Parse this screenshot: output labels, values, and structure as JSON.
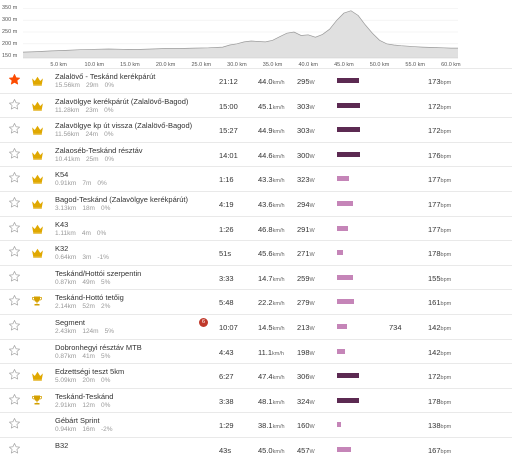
{
  "chart_data": {
    "type": "area",
    "title": "",
    "xlabel": "",
    "ylabel": "",
    "y_ticks": [
      "350 m",
      "300 m",
      "250 m",
      "200 m",
      "150 m"
    ],
    "x_ticks": [
      "5.0 km",
      "10.0 km",
      "15.0 km",
      "20.0 km",
      "25.0 km",
      "30.0 km",
      "35.0 km",
      "40.0 km",
      "45.0 km",
      "50.0 km",
      "55.0 km",
      "60.0 km"
    ],
    "xlim": [
      0,
      61
    ],
    "ylim": [
      140,
      360
    ],
    "x": [
      0,
      2,
      4,
      6,
      8,
      10,
      12,
      14,
      16,
      18,
      20,
      22,
      24,
      26,
      28,
      29,
      30,
      31,
      32,
      33,
      34,
      35,
      36,
      37,
      38,
      39,
      40,
      41,
      42,
      43,
      44,
      45,
      46,
      47,
      48,
      49,
      50,
      51,
      52,
      53,
      54,
      55,
      56,
      57,
      58,
      59,
      60,
      61
    ],
    "values": [
      165,
      167,
      170,
      172,
      175,
      177,
      178,
      177,
      176,
      178,
      180,
      180,
      182,
      183,
      186,
      195,
      200,
      208,
      212,
      210,
      208,
      215,
      230,
      245,
      250,
      235,
      238,
      228,
      240,
      262,
      300,
      330,
      340,
      320,
      280,
      245,
      215,
      200,
      195,
      192,
      190,
      188,
      186,
      185,
      184,
      183,
      182,
      182
    ],
    "fill_color": "#e0e0e0",
    "line_color": "#9a9a9a"
  },
  "segments": [
    {
      "starred": true,
      "medal": "crown",
      "name": "Zalalövő - Teskánd kerékpárút",
      "dist": "15.56km",
      "elev": "29m",
      "grade": "0%",
      "badge": "",
      "time": "21:12",
      "speed": "44.0",
      "power": "295",
      "power_frac": 0.84,
      "extra": "",
      "hr": "173"
    },
    {
      "starred": false,
      "medal": "crown",
      "name": "Zalavölgye kerékpárút (Zalalövő-Bagod)",
      "dist": "11.28km",
      "elev": "23m",
      "grade": "0%",
      "badge": "",
      "time": "15:00",
      "speed": "45.1",
      "power": "303",
      "power_frac": 0.9,
      "extra": "",
      "hr": "172"
    },
    {
      "starred": false,
      "medal": "crown",
      "name": "Zalavölgye kp út vissza (Zalalövő-Bagod)",
      "dist": "11.56km",
      "elev": "24m",
      "grade": "0%",
      "badge": "",
      "time": "15:27",
      "speed": "44.9",
      "power": "303",
      "power_frac": 0.9,
      "extra": "",
      "hr": "172"
    },
    {
      "starred": false,
      "medal": "crown",
      "name": "Zalaoséb-Teskánd résztáv",
      "dist": "10.41km",
      "elev": "25m",
      "grade": "0%",
      "badge": "",
      "time": "14:01",
      "speed": "44.6",
      "power": "300",
      "power_frac": 0.88,
      "extra": "",
      "hr": "176"
    },
    {
      "starred": false,
      "medal": "crown",
      "name": "K54",
      "dist": "0.91km",
      "elev": "7m",
      "grade": "0%",
      "badge": "",
      "time": "1:16",
      "speed": "43.3",
      "power": "323",
      "power_frac": 0.46,
      "extra": "",
      "hr": "177"
    },
    {
      "starred": false,
      "medal": "crown",
      "name": "Bagod-Teskánd (Zalavölgye kerékpárút)",
      "dist": "3.13km",
      "elev": "18m",
      "grade": "0%",
      "badge": "",
      "time": "4:19",
      "speed": "43.6",
      "power": "294",
      "power_frac": 0.6,
      "extra": "",
      "hr": "177"
    },
    {
      "starred": false,
      "medal": "crown",
      "name": "K43",
      "dist": "1.11km",
      "elev": "4m",
      "grade": "0%",
      "badge": "",
      "time": "1:26",
      "speed": "46.8",
      "power": "291",
      "power_frac": 0.42,
      "extra": "",
      "hr": "177"
    },
    {
      "starred": false,
      "medal": "crown",
      "name": "K32",
      "dist": "0.64km",
      "elev": "3m",
      "grade": "-1%",
      "badge": "",
      "time": "51s",
      "speed": "45.6",
      "power": "271",
      "power_frac": 0.22,
      "extra": "",
      "hr": "178"
    },
    {
      "starred": false,
      "medal": "none",
      "name": "Teskánd/Hottói szerpentin",
      "dist": "0.87km",
      "elev": "49m",
      "grade": "5%",
      "badge": "",
      "time": "3:33",
      "speed": "14.7",
      "power": "259",
      "power_frac": 0.62,
      "extra": "",
      "hr": "155"
    },
    {
      "starred": false,
      "medal": "trophy",
      "name": "Teskánd-Hottó tetőig",
      "dist": "2.14km",
      "elev": "52m",
      "grade": "2%",
      "badge": "",
      "time": "5:48",
      "speed": "22.2",
      "power": "279",
      "power_frac": 0.64,
      "extra": "",
      "hr": "161"
    },
    {
      "starred": false,
      "medal": "none",
      "name": "Segment",
      "dist": "2.43km",
      "elev": "124m",
      "grade": "5%",
      "badge": "6",
      "time": "10:07",
      "speed": "14.5",
      "power": "213",
      "power_frac": 0.4,
      "extra": "734",
      "hr": "142"
    },
    {
      "starred": false,
      "medal": "none",
      "name": "Dobronhegyi résztáv MTB",
      "dist": "0.87km",
      "elev": "41m",
      "grade": "5%",
      "badge": "",
      "time": "4:43",
      "speed": "11.1",
      "power": "198",
      "power_frac": 0.3,
      "extra": "",
      "hr": "142"
    },
    {
      "starred": false,
      "medal": "crown",
      "name": "Edzettségi teszt 5km",
      "dist": "5.09km",
      "elev": "20m",
      "grade": "0%",
      "badge": "",
      "time": "6:27",
      "speed": "47.4",
      "power": "306",
      "power_frac": 0.84,
      "extra": "",
      "hr": "172"
    },
    {
      "starred": false,
      "medal": "trophy",
      "name": "Teskánd-Teskánd",
      "dist": "2.91km",
      "elev": "12m",
      "grade": "0%",
      "badge": "",
      "time": "3:38",
      "speed": "48.1",
      "power": "324",
      "power_frac": 0.86,
      "extra": "",
      "hr": "178"
    },
    {
      "starred": false,
      "medal": "none",
      "name": "Gébárt Sprint",
      "dist": "0.94km",
      "elev": "16m",
      "grade": "-2%",
      "badge": "",
      "time": "1:29",
      "speed": "38.1",
      "power": "160",
      "power_frac": 0.16,
      "extra": "",
      "hr": "138"
    },
    {
      "starred": false,
      "medal": "none",
      "name": "B32",
      "dist": "",
      "elev": "",
      "grade": "",
      "badge": "",
      "time": "43s",
      "speed": "45.0",
      "power": "457",
      "power_frac": 0.55,
      "extra": "",
      "hr": "167"
    }
  ],
  "units": {
    "speed": "km/h",
    "power": "W",
    "hr": "bpm"
  },
  "colors": {
    "star_active": "#fc4c02",
    "star_inactive": "#aaaaaa",
    "crown": "#e0a800",
    "trophy": "#d4a000",
    "bar_dark": "#5c2a52",
    "bar_light": "#c585b8",
    "badge": "#c0392b"
  }
}
